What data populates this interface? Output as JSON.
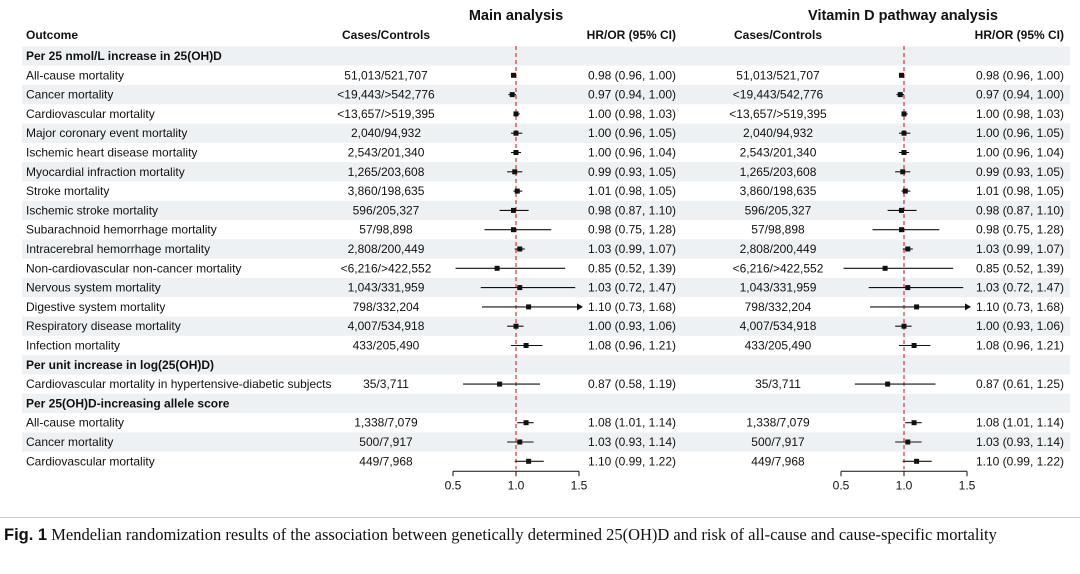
{
  "panels": [
    {
      "title": "Main analysis",
      "cases_header": "Cases/Controls",
      "hr_header": "HR/OR (95% CI)"
    },
    {
      "title": "Vitamin D pathway analysis",
      "cases_header": "Cases/Controls",
      "hr_header": "HR/OR (95% CI)"
    }
  ],
  "outcome_header": "Outcome",
  "caption": {
    "label": "Fig. 1",
    "text": "Mendelian randomization results of the association between genetically determined 25(OH)D and risk of all-cause and cause-specific mortality"
  },
  "chart_data": {
    "type": "forest",
    "x_ticks": [
      0.5,
      1.0,
      1.5
    ],
    "x_tick_labels": [
      "0.5",
      "1.0",
      "1.5"
    ],
    "xlim": [
      0.5,
      1.5
    ],
    "reference_line": 1.0,
    "reference_line_color": "#e03030",
    "rows": [
      {
        "kind": "header",
        "label": "Per 25 nmol/L increase in 25(OH)D"
      },
      {
        "kind": "row",
        "label": "All-cause mortality",
        "main": {
          "cases": "51,013/521,707",
          "est": 0.98,
          "lo": 0.96,
          "hi": 1.0,
          "text": "0.98 (0.96, 1.00)"
        },
        "vitd": {
          "cases": "51,013/521,707",
          "est": 0.98,
          "lo": 0.96,
          "hi": 1.0,
          "text": "0.98 (0.96, 1.00)"
        }
      },
      {
        "kind": "row",
        "label": "Cancer mortality",
        "main": {
          "cases": "<19,443/>542,776",
          "est": 0.97,
          "lo": 0.94,
          "hi": 1.0,
          "text": "0.97 (0.94, 1.00)"
        },
        "vitd": {
          "cases": "<19,443/542,776",
          "est": 0.97,
          "lo": 0.94,
          "hi": 1.0,
          "text": "0.97 (0.94, 1.00)"
        }
      },
      {
        "kind": "row",
        "label": "Cardiovascular mortality",
        "main": {
          "cases": "<13,657/>519,395",
          "est": 1.0,
          "lo": 0.98,
          "hi": 1.03,
          "text": "1.00 (0.98, 1.03)"
        },
        "vitd": {
          "cases": "<13,657/>519,395",
          "est": 1.0,
          "lo": 0.98,
          "hi": 1.03,
          "text": "1.00 (0.98, 1.03)"
        }
      },
      {
        "kind": "row",
        "label": "Major coronary event mortality",
        "main": {
          "cases": "2,040/94,932",
          "est": 1.0,
          "lo": 0.96,
          "hi": 1.05,
          "text": "1.00 (0.96, 1.05)"
        },
        "vitd": {
          "cases": "2,040/94,932",
          "est": 1.0,
          "lo": 0.96,
          "hi": 1.05,
          "text": "1.00 (0.96, 1.05)"
        }
      },
      {
        "kind": "row",
        "label": "Ischemic heart disease mortality",
        "main": {
          "cases": "2,543/201,340",
          "est": 1.0,
          "lo": 0.96,
          "hi": 1.04,
          "text": "1.00 (0.96, 1.04)"
        },
        "vitd": {
          "cases": "2,543/201,340",
          "est": 1.0,
          "lo": 0.96,
          "hi": 1.04,
          "text": "1.00 (0.96, 1.04)"
        }
      },
      {
        "kind": "row",
        "label": "Myocardial infraction mortality",
        "main": {
          "cases": "1,265/203,608",
          "est": 0.99,
          "lo": 0.93,
          "hi": 1.05,
          "text": "0.99 (0.93, 1.05)"
        },
        "vitd": {
          "cases": "1,265/203,608",
          "est": 0.99,
          "lo": 0.93,
          "hi": 1.05,
          "text": "0.99 (0.93, 1.05)"
        }
      },
      {
        "kind": "row",
        "label": "Stroke mortality",
        "main": {
          "cases": "3,860/198,635",
          "est": 1.01,
          "lo": 0.98,
          "hi": 1.05,
          "text": "1.01 (0.98, 1.05)"
        },
        "vitd": {
          "cases": "3,860/198,635",
          "est": 1.01,
          "lo": 0.98,
          "hi": 1.05,
          "text": "1.01 (0.98, 1.05)"
        }
      },
      {
        "kind": "row",
        "label": "Ischemic stroke mortality",
        "main": {
          "cases": "596/205,327",
          "est": 0.98,
          "lo": 0.87,
          "hi": 1.1,
          "text": "0.98 (0.87, 1.10)"
        },
        "vitd": {
          "cases": "596/205,327",
          "est": 0.98,
          "lo": 0.87,
          "hi": 1.1,
          "text": "0.98 (0.87, 1.10)"
        }
      },
      {
        "kind": "row",
        "label": "Subarachnoid hemorrhage mortality",
        "main": {
          "cases": "57/98,898",
          "est": 0.98,
          "lo": 0.75,
          "hi": 1.28,
          "text": "0.98 (0.75, 1.28)"
        },
        "vitd": {
          "cases": "57/98,898",
          "est": 0.98,
          "lo": 0.75,
          "hi": 1.28,
          "text": "0.98 (0.75, 1.28)"
        }
      },
      {
        "kind": "row",
        "label": "Intracerebral hemorrhage mortality",
        "main": {
          "cases": "2,808/200,449",
          "est": 1.03,
          "lo": 0.99,
          "hi": 1.07,
          "text": "1.03 (0.99, 1.07)"
        },
        "vitd": {
          "cases": "2,808/200,449",
          "est": 1.03,
          "lo": 0.99,
          "hi": 1.07,
          "text": "1.03 (0.99, 1.07)"
        }
      },
      {
        "kind": "row",
        "label": "Non-cardiovascular non-cancer mortality",
        "main": {
          "cases": "<6,216/>422,552",
          "est": 0.85,
          "lo": 0.52,
          "hi": 1.39,
          "text": "0.85 (0.52, 1.39)"
        },
        "vitd": {
          "cases": "<6,216/>422,552",
          "est": 0.85,
          "lo": 0.52,
          "hi": 1.39,
          "text": "0.85 (0.52, 1.39)"
        }
      },
      {
        "kind": "row",
        "label": "Nervous system mortality",
        "main": {
          "cases": "1,043/331,959",
          "est": 1.03,
          "lo": 0.72,
          "hi": 1.47,
          "text": "1.03 (0.72, 1.47)"
        },
        "vitd": {
          "cases": "1,043/331,959",
          "est": 1.03,
          "lo": 0.72,
          "hi": 1.47,
          "text": "1.03 (0.72, 1.47)"
        }
      },
      {
        "kind": "row",
        "label": "Digestive system mortality",
        "main": {
          "cases": "798/332,204",
          "est": 1.1,
          "lo": 0.73,
          "hi": 1.68,
          "text": "1.10 (0.73, 1.68)"
        },
        "vitd": {
          "cases": "798/332,204",
          "est": 1.1,
          "lo": 0.73,
          "hi": 1.68,
          "text": "1.10 (0.73, 1.68)"
        }
      },
      {
        "kind": "row",
        "label": "Respiratory disease mortality",
        "main": {
          "cases": "4,007/534,918",
          "est": 1.0,
          "lo": 0.93,
          "hi": 1.06,
          "text": "1.00 (0.93, 1.06)"
        },
        "vitd": {
          "cases": "4,007/534,918",
          "est": 1.0,
          "lo": 0.93,
          "hi": 1.06,
          "text": "1.00 (0.93, 1.06)"
        }
      },
      {
        "kind": "row",
        "label": "Infection mortality",
        "main": {
          "cases": "433/205,490",
          "est": 1.08,
          "lo": 0.96,
          "hi": 1.21,
          "text": "1.08 (0.96, 1.21)"
        },
        "vitd": {
          "cases": "433/205,490",
          "est": 1.08,
          "lo": 0.96,
          "hi": 1.21,
          "text": "1.08 (0.96, 1.21)"
        }
      },
      {
        "kind": "header",
        "label": "Per unit increase in log(25(OH)D)"
      },
      {
        "kind": "row",
        "label": "Cardiovascular mortality in hypertensive-diabetic subjects",
        "main": {
          "cases": "35/3,711",
          "est": 0.87,
          "lo": 0.58,
          "hi": 1.19,
          "text": "0.87 (0.58, 1.19)"
        },
        "vitd": {
          "cases": "35/3,711",
          "est": 0.87,
          "lo": 0.61,
          "hi": 1.25,
          "text": "0.87 (0.61, 1.25)"
        }
      },
      {
        "kind": "header",
        "label": "Per 25(OH)D-increasing allele score"
      },
      {
        "kind": "row",
        "label": "All-cause mortality",
        "main": {
          "cases": "1,338/7,079",
          "est": 1.08,
          "lo": 1.01,
          "hi": 1.14,
          "text": "1.08 (1.01, 1.14)"
        },
        "vitd": {
          "cases": "1,338/7,079",
          "est": 1.08,
          "lo": 1.01,
          "hi": 1.14,
          "text": "1.08 (1.01, 1.14)"
        }
      },
      {
        "kind": "row",
        "label": "Cancer mortality",
        "main": {
          "cases": "500/7,917",
          "est": 1.03,
          "lo": 0.93,
          "hi": 1.14,
          "text": "1.03 (0.93, 1.14)"
        },
        "vitd": {
          "cases": "500/7,917",
          "est": 1.03,
          "lo": 0.93,
          "hi": 1.14,
          "text": "1.03 (0.93, 1.14)"
        }
      },
      {
        "kind": "row",
        "label": "Cardiovascular mortality",
        "main": {
          "cases": "449/7,968",
          "est": 1.1,
          "lo": 0.99,
          "hi": 1.22,
          "text": "1.10 (0.99, 1.22)"
        },
        "vitd": {
          "cases": "449/7,968",
          "est": 1.1,
          "lo": 0.99,
          "hi": 1.22,
          "text": "1.10 (0.99, 1.22)"
        }
      }
    ]
  }
}
